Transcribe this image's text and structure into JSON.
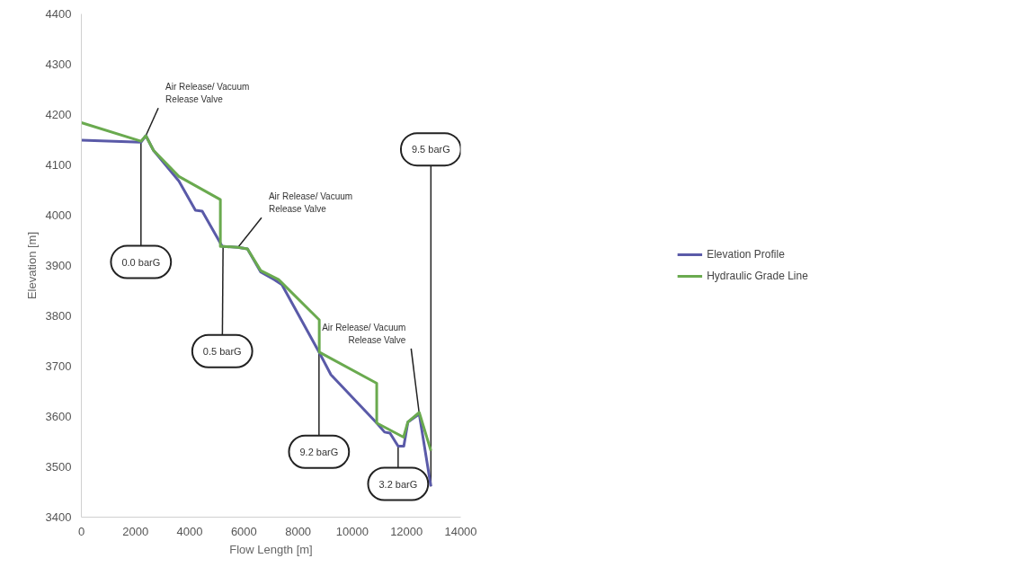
{
  "chart_data": {
    "type": "line",
    "xlabel": "Flow Length [m]",
    "ylabel": "Elevation [m]",
    "xlim": [
      0,
      14000
    ],
    "xticks": [
      0,
      2000,
      4000,
      6000,
      8000,
      10000,
      12000,
      14000
    ],
    "ylim": [
      3400,
      4400
    ],
    "yticks": [
      3400,
      3500,
      3600,
      3700,
      3800,
      3900,
      4000,
      4100,
      4200,
      4300,
      4400
    ],
    "grid": false,
    "legend": "right",
    "marker": "none",
    "line_style": "solid",
    "series": [
      {
        "name": "Elevation Profile",
        "color": "#5a5aa8",
        "x": [
          0,
          2200,
          2380,
          2660,
          3600,
          4210,
          4460,
          5200,
          5230,
          5780,
          6130,
          6620,
          7120,
          7400,
          8770,
          9210,
          10900,
          11190,
          11390,
          11690,
          11900,
          12050,
          12470,
          12900
        ],
        "values": [
          4149,
          4145,
          4158,
          4129,
          4068,
          4010,
          4008,
          3938,
          3938,
          3936,
          3933,
          3887,
          3872,
          3862,
          3728,
          3683,
          3587,
          3569,
          3567,
          3541,
          3541,
          3589,
          3605,
          3461
        ]
      },
      {
        "name": "Hydraulic Grade Line",
        "color": "#6aaa4f",
        "x": [
          0,
          2200,
          2380,
          2660,
          3600,
          5130,
          5130,
          5230,
          5780,
          6130,
          6620,
          7280,
          8780,
          8780,
          10900,
          10900,
          11890,
          12050,
          12470,
          12900
        ],
        "values": [
          4184,
          4147,
          4158,
          4129,
          4077,
          4031,
          3938,
          3938,
          3936,
          3933,
          3890,
          3872,
          3792,
          3728,
          3666,
          3587,
          3559,
          3589,
          3608,
          3532
        ]
      }
    ],
    "annotations": [
      {
        "text": "0.0 barG",
        "x": 2200,
        "y": 4147
      },
      {
        "text": "0.5 barG",
        "x": 5230,
        "y": 3938
      },
      {
        "text": "9.2 barG",
        "x": 8770,
        "y": 3728
      },
      {
        "text": "3.2 barG",
        "x": 11690,
        "y": 3541
      },
      {
        "text": "9.5 barG",
        "x": 12900,
        "y": 3461
      },
      {
        "text": "Air Release/ Vacuum\nRelease Valve",
        "x": 2380,
        "y": 4158
      },
      {
        "text": "Air Release/ Vacuum\nRelease Valve",
        "x": 5780,
        "y": 3936
      },
      {
        "text": "Air Release/ Vacuum\nRelease Valve",
        "x": 12470,
        "y": 3605
      }
    ]
  }
}
